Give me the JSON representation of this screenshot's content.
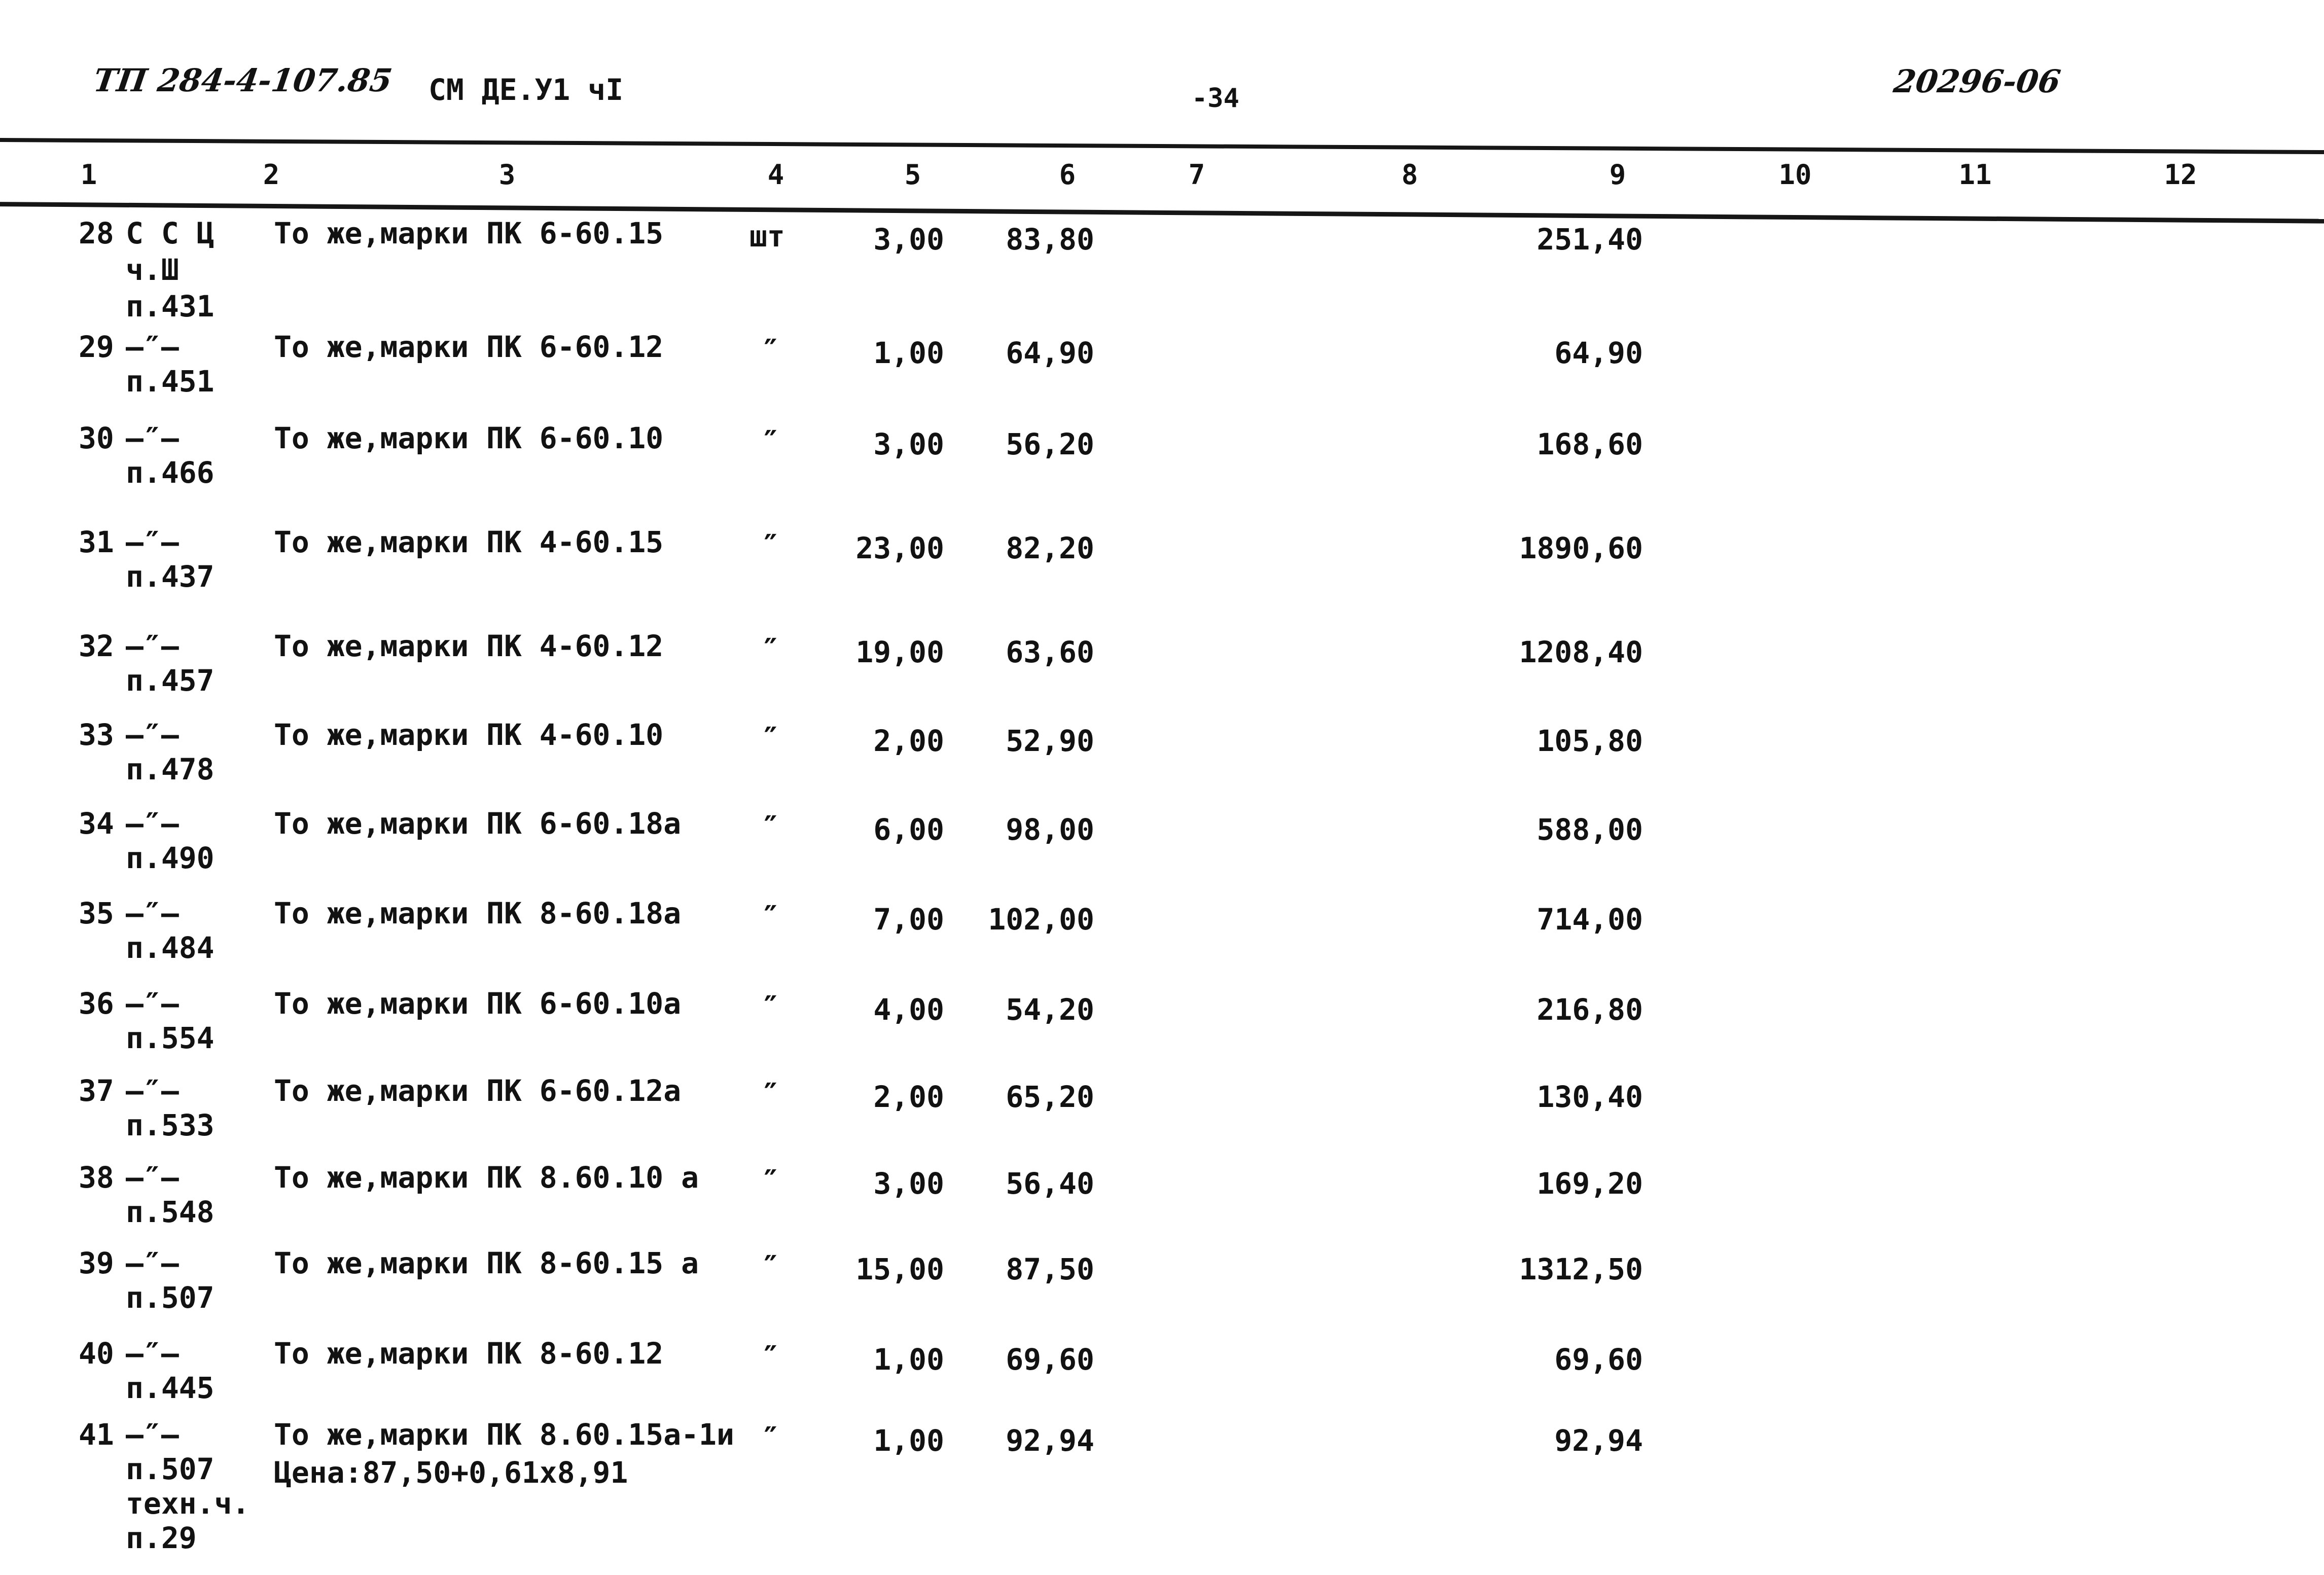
{
  "header": {
    "project_code": "ТП 284-4-107.85",
    "doc_code": "СМ ДЕ.У1 чI",
    "page_number": "-34",
    "inventory_number": "20296-06"
  },
  "ink_color": "#121212",
  "table": {
    "column_numbers": [
      {
        "label": "1"
      },
      {
        "label": "2"
      },
      {
        "label": "3"
      },
      {
        "label": "4"
      },
      {
        "label": "5"
      },
      {
        "label": "6"
      },
      {
        "label": "7"
      },
      {
        "label": "8"
      },
      {
        "label": "9"
      },
      {
        "label": "10"
      },
      {
        "label": "11"
      },
      {
        "label": "12"
      }
    ],
    "rows": [
      {
        "num": "28",
        "code_lines": [
          "С С Ц",
          "ч.Ш",
          "п.431"
        ],
        "desc_lines": [
          "То же,марки ПК 6-60.15"
        ],
        "unit": "шт",
        "qty": "3,00",
        "price": "83,80",
        "sum": "251,40"
      },
      {
        "num": "29",
        "code_lines": [
          "—″—",
          "п.451"
        ],
        "desc_lines": [
          "То же,марки ПК 6-60.12"
        ],
        "unit": "″",
        "qty": "1,00",
        "price": "64,90",
        "sum": "64,90"
      },
      {
        "num": "30",
        "code_lines": [
          "—″—",
          "п.466"
        ],
        "desc_lines": [
          "То же,марки ПК 6-60.10"
        ],
        "unit": "″",
        "qty": "3,00",
        "price": "56,20",
        "sum": "168,60"
      },
      {
        "num": "31",
        "code_lines": [
          "—″—",
          "п.437"
        ],
        "desc_lines": [
          "То же,марки ПК 4-60.15"
        ],
        "unit": "″",
        "qty": "23,00",
        "price": "82,20",
        "sum": "1890,60"
      },
      {
        "num": "32",
        "code_lines": [
          "—″—",
          "п.457"
        ],
        "desc_lines": [
          "То же,марки ПК 4-60.12"
        ],
        "unit": "″",
        "qty": "19,00",
        "price": "63,60",
        "sum": "1208,40"
      },
      {
        "num": "33",
        "code_lines": [
          "—″—",
          "п.478"
        ],
        "desc_lines": [
          "То же,марки ПК 4-60.10"
        ],
        "unit": "″",
        "qty": "2,00",
        "price": "52,90",
        "sum": "105,80"
      },
      {
        "num": "34",
        "code_lines": [
          "—″—",
          "п.490"
        ],
        "desc_lines": [
          "То же,марки ПК 6-60.18а"
        ],
        "unit": "″",
        "qty": "6,00",
        "price": "98,00",
        "sum": "588,00"
      },
      {
        "num": "35",
        "code_lines": [
          "—″—",
          "п.484"
        ],
        "desc_lines": [
          "То же,марки ПК 8-60.18а"
        ],
        "unit": "″",
        "qty": "7,00",
        "price": "102,00",
        "sum": "714,00"
      },
      {
        "num": "36",
        "code_lines": [
          "—″—",
          "п.554"
        ],
        "desc_lines": [
          "То же,марки ПК 6-60.10а"
        ],
        "unit": "″",
        "qty": "4,00",
        "price": "54,20",
        "sum": "216,80"
      },
      {
        "num": "37",
        "code_lines": [
          "—″—",
          "п.533"
        ],
        "desc_lines": [
          "То же,марки ПК 6-60.12а"
        ],
        "unit": "″",
        "qty": "2,00",
        "price": "65,20",
        "sum": "130,40"
      },
      {
        "num": "38",
        "code_lines": [
          "—″—",
          "п.548"
        ],
        "desc_lines": [
          "То же,марки ПК 8.60.10 а"
        ],
        "unit": "″",
        "qty": "3,00",
        "price": "56,40",
        "sum": "169,20"
      },
      {
        "num": "39",
        "code_lines": [
          "—″—",
          "п.507"
        ],
        "desc_lines": [
          "То же,марки ПК 8-60.15 а"
        ],
        "unit": "″",
        "qty": "15,00",
        "price": "87,50",
        "sum": "1312,50"
      },
      {
        "num": "40",
        "code_lines": [
          "—″—",
          "п.445"
        ],
        "desc_lines": [
          "То же,марки ПК 8-60.12"
        ],
        "unit": "″",
        "qty": "1,00",
        "price": "69,60",
        "sum": "69,60"
      },
      {
        "num": "41",
        "code_lines": [
          "—″—",
          "п.507",
          "техн.ч.",
          "п.29"
        ],
        "desc_lines": [
          "То же,марки ПК 8.60.15а-1и",
          "Цена:87,50+0,61х8,91"
        ],
        "unit": "″",
        "qty": "1,00",
        "price": "92,94",
        "sum": "92,94"
      }
    ]
  }
}
